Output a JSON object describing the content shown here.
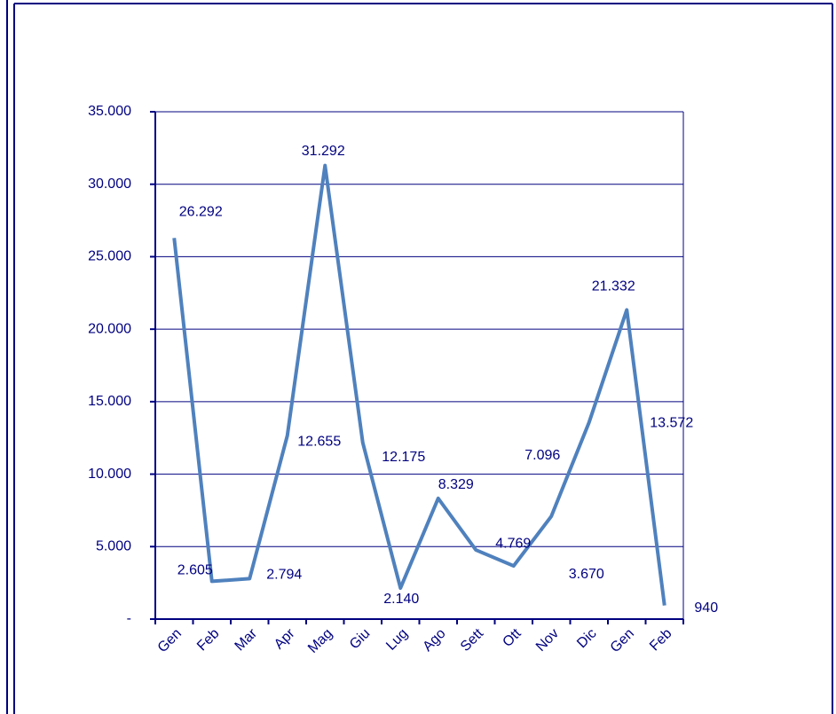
{
  "chart_data": {
    "type": "line",
    "categories": [
      "Gen",
      "Feb",
      "Mar",
      "Apr",
      "Mag",
      "Giu",
      "Lug",
      "Ago",
      "Sett",
      "Ott",
      "Nov",
      "Dic",
      "Gen",
      "Feb"
    ],
    "values": [
      26292,
      2605,
      2794,
      12655,
      31292,
      12175,
      2140,
      8329,
      4769,
      3670,
      7096,
      13572,
      21332,
      940
    ],
    "value_labels": [
      "26.292",
      "2.605",
      "2.794",
      "12.655",
      "31.292",
      "12.175",
      "2.140",
      "8.329",
      "4.769",
      "3.670",
      "7.096",
      "13.572",
      "21.332",
      "940"
    ],
    "color": "#4f81bd",
    "ylim": [
      0,
      35000
    ],
    "yticks": [
      {
        "value": 0,
        "label": "-"
      },
      {
        "value": 5000,
        "label": "5.000"
      },
      {
        "value": 10000,
        "label": "10.000"
      },
      {
        "value": 15000,
        "label": "15.000"
      },
      {
        "value": 20000,
        "label": "20.000"
      },
      {
        "value": 25000,
        "label": "25.000"
      },
      {
        "value": 30000,
        "label": "30.000"
      },
      {
        "value": 35000,
        "label": "35.000"
      }
    ],
    "grid": true
  }
}
